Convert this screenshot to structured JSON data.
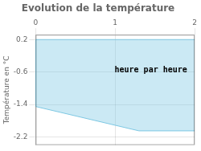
{
  "chart_data": {
    "type": "area",
    "title": "Evolution de la température",
    "ylabel": "Température en °C",
    "annotations": [
      {
        "text": "heure par heure",
        "x": 1.45,
        "y": -0.55
      }
    ],
    "x": [
      0,
      0,
      1.3,
      2
    ],
    "series": [
      {
        "values": [
          0.2,
          -1.45,
          -2.05,
          -2.05
        ],
        "color": "#7ec8e3"
      }
    ],
    "fill_top": [
      0.2,
      0.2,
      0.2,
      0.2
    ],
    "xlim": [
      0,
      2
    ],
    "xticks": [
      0,
      1,
      2
    ],
    "ylim": [
      -2.4,
      0.32
    ],
    "yticks": [
      0.2,
      -0.6,
      -1.4,
      -2.2
    ],
    "grid": true
  }
}
